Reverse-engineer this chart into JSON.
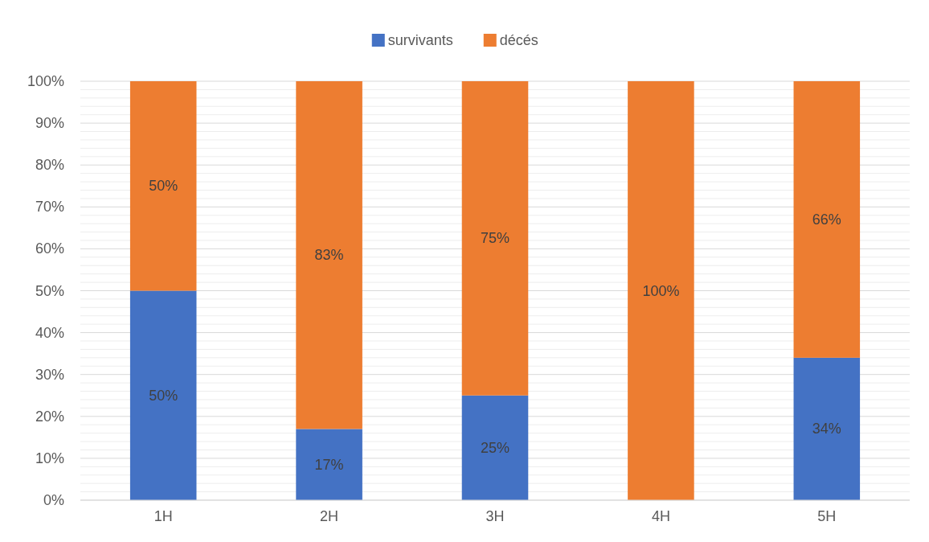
{
  "chart_data": {
    "type": "bar",
    "stacked": true,
    "categories": [
      "1H",
      "2H",
      "3H",
      "4H",
      "5H"
    ],
    "series": [
      {
        "name": "survivants",
        "color": "#4472c4",
        "values": [
          50,
          17,
          25,
          0,
          34
        ],
        "value_labels": [
          "50%",
          "17%",
          "25%",
          null,
          "34%"
        ]
      },
      {
        "name": "décés",
        "color": "#ed7d31",
        "values": [
          50,
          83,
          75,
          100,
          66
        ],
        "value_labels": [
          "50%",
          "83%",
          "75%",
          "100%",
          "66%"
        ]
      }
    ],
    "ylim": [
      0,
      100
    ],
    "yticks": [
      {
        "value": 0,
        "label": "0%"
      },
      {
        "value": 2,
        "label": null
      },
      {
        "value": 4,
        "label": null
      },
      {
        "value": 6,
        "label": null
      },
      {
        "value": 8,
        "label": null
      },
      {
        "value": 10,
        "label": "10%"
      },
      {
        "value": 12,
        "label": null
      },
      {
        "value": 14,
        "label": null
      },
      {
        "value": 16,
        "label": null
      },
      {
        "value": 18,
        "label": null
      },
      {
        "value": 20,
        "label": "20%"
      },
      {
        "value": 22,
        "label": null
      },
      {
        "value": 24,
        "label": null
      },
      {
        "value": 26,
        "label": null
      },
      {
        "value": 28,
        "label": null
      },
      {
        "value": 30,
        "label": "30%"
      },
      {
        "value": 32,
        "label": null
      },
      {
        "value": 34,
        "label": null
      },
      {
        "value": 36,
        "label": null
      },
      {
        "value": 38,
        "label": null
      },
      {
        "value": 40,
        "label": "40%"
      },
      {
        "value": 42,
        "label": null
      },
      {
        "value": 44,
        "label": null
      },
      {
        "value": 46,
        "label": null
      },
      {
        "value": 48,
        "label": null
      },
      {
        "value": 50,
        "label": "50%"
      },
      {
        "value": 52,
        "label": null
      },
      {
        "value": 54,
        "label": null
      },
      {
        "value": 56,
        "label": null
      },
      {
        "value": 58,
        "label": null
      },
      {
        "value": 60,
        "label": "60%"
      },
      {
        "value": 62,
        "label": null
      },
      {
        "value": 64,
        "label": null
      },
      {
        "value": 66,
        "label": null
      },
      {
        "value": 68,
        "label": null
      },
      {
        "value": 70,
        "label": "70%"
      },
      {
        "value": 72,
        "label": null
      },
      {
        "value": 74,
        "label": null
      },
      {
        "value": 76,
        "label": null
      },
      {
        "value": 78,
        "label": null
      },
      {
        "value": 80,
        "label": "80%"
      },
      {
        "value": 82,
        "label": null
      },
      {
        "value": 84,
        "label": null
      },
      {
        "value": 86,
        "label": null
      },
      {
        "value": 88,
        "label": null
      },
      {
        "value": 90,
        "label": "90%"
      },
      {
        "value": 92,
        "label": null
      },
      {
        "value": 94,
        "label": null
      },
      {
        "value": 96,
        "label": null
      },
      {
        "value": 98,
        "label": null
      },
      {
        "value": 100,
        "label": "100%"
      }
    ],
    "grid": "y",
    "legend": "top"
  }
}
